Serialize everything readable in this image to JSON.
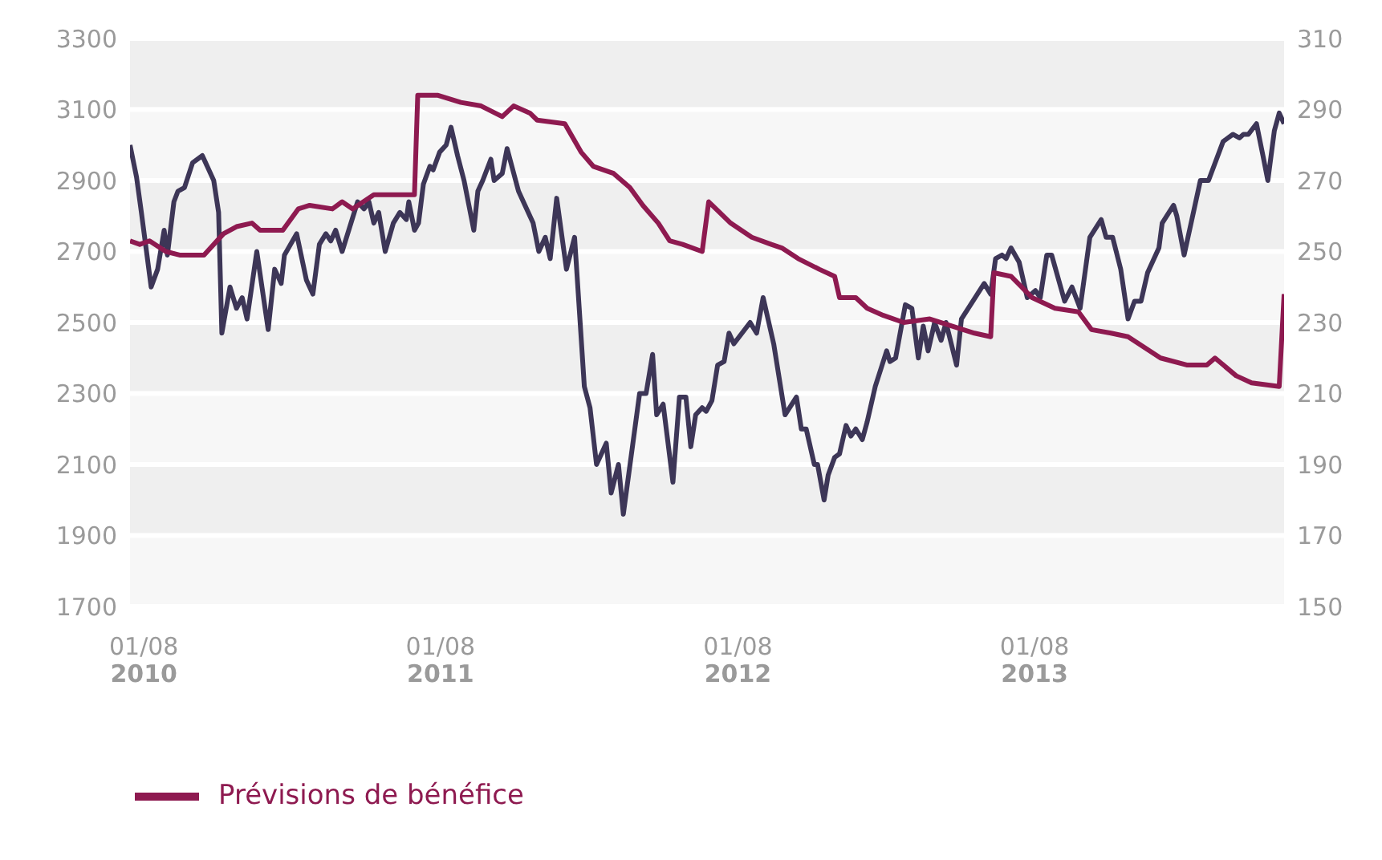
{
  "chart_data": {
    "type": "line",
    "xlim": [
      "2010-07-15",
      "2014-06-04"
    ],
    "xticks": [
      {
        "value": "2010-08-01",
        "label": "01/08\n2010"
      },
      {
        "value": "2011-08-01",
        "label": "01/08\n2011"
      },
      {
        "value": "2012-08-01",
        "label": "01/08\n2012"
      },
      {
        "value": "2013-08-01",
        "label": "01/08\n2013"
      }
    ],
    "ylim": [
      1700,
      3300
    ],
    "yticks": [
      1700,
      1900,
      2100,
      2300,
      2500,
      2700,
      2900,
      3100,
      3300
    ],
    "y2lim": [
      150,
      310
    ],
    "y2ticks": [
      150,
      170,
      190,
      210,
      230,
      250,
      270,
      290,
      310
    ],
    "grid": "y",
    "legend": "bottom left",
    "marker": "none",
    "line_style": "solid",
    "series": [
      {
        "color": "#3d3657",
        "axis": "y",
        "x": [
          "2010-07-15",
          "2010-07-23",
          "2010-07-29",
          "2010-08-10",
          "2010-08-18",
          "2010-08-26",
          "2010-08-30",
          "2010-09-07",
          "2010-09-12",
          "2010-09-20",
          "2010-09-30",
          "2010-10-12",
          "2010-10-26",
          "2010-11-01",
          "2010-11-05",
          "2010-11-15",
          "2010-11-23",
          "2010-11-30",
          "2010-12-06",
          "2010-12-18",
          "2011-01-01",
          "2011-01-09",
          "2011-01-17",
          "2011-01-21",
          "2011-02-05",
          "2011-02-17",
          "2011-02-25",
          "2011-03-05",
          "2011-03-13",
          "2011-03-19",
          "2011-03-25",
          "2011-04-02",
          "2011-04-21",
          "2011-04-29",
          "2011-05-05",
          "2011-05-11",
          "2011-05-17",
          "2011-05-25",
          "2011-06-04",
          "2011-06-12",
          "2011-06-20",
          "2011-06-23",
          "2011-06-30",
          "2011-07-05",
          "2011-07-11",
          "2011-07-19",
          "2011-07-23",
          "2011-07-31",
          "2011-08-08",
          "2011-08-14",
          "2011-08-22",
          "2011-08-30",
          "2011-09-11",
          "2011-09-16",
          "2011-09-22",
          "2011-10-02",
          "2011-10-06",
          "2011-10-16",
          "2011-10-22",
          "2011-11-05",
          "2011-11-23",
          "2011-11-30",
          "2011-12-08",
          "2011-12-14",
          "2011-12-22",
          "2012-01-03",
          "2012-01-13",
          "2012-01-25",
          "2012-02-01",
          "2012-02-09",
          "2012-02-21",
          "2012-02-27",
          "2012-03-07",
          "2012-03-13",
          "2012-04-02",
          "2012-04-10",
          "2012-04-18",
          "2012-04-23",
          "2012-05-01",
          "2012-05-13",
          "2012-05-21",
          "2012-05-29",
          "2012-06-04",
          "2012-06-10",
          "2012-06-18",
          "2012-06-23",
          "2012-06-30",
          "2012-07-07",
          "2012-07-15",
          "2012-07-21",
          "2012-07-27",
          "2012-08-06",
          "2012-08-16",
          "2012-08-24",
          "2012-09-01",
          "2012-09-14",
          "2012-09-28",
          "2012-10-12",
          "2012-10-18",
          "2012-10-24",
          "2012-11-03",
          "2012-11-07",
          "2012-11-15",
          "2012-11-20",
          "2012-11-28",
          "2012-12-04",
          "2012-12-12",
          "2012-12-18",
          "2012-12-24",
          "2013-01-01",
          "2013-01-07",
          "2013-01-17",
          "2013-01-31",
          "2013-02-04",
          "2013-02-11",
          "2013-02-23",
          "2013-03-03",
          "2013-03-11",
          "2013-03-17",
          "2013-03-23",
          "2013-03-31",
          "2013-04-08",
          "2013-04-14",
          "2013-04-27",
          "2013-05-03",
          "2013-05-31",
          "2013-06-08",
          "2013-06-14",
          "2013-06-22",
          "2013-06-27",
          "2013-07-03",
          "2013-07-13",
          "2013-07-23",
          "2013-08-02",
          "2013-08-08",
          "2013-08-16",
          "2013-08-22",
          "2013-09-07",
          "2013-09-16",
          "2013-09-26",
          "2013-10-08",
          "2013-10-22",
          "2013-10-28",
          "2013-11-05",
          "2013-11-15",
          "2013-11-24",
          "2013-12-02",
          "2013-12-10",
          "2013-12-18",
          "2014-01-01",
          "2014-01-05",
          "2014-01-19",
          "2014-01-23",
          "2014-02-01",
          "2014-02-21",
          "2014-03-03",
          "2014-03-21",
          "2014-03-27",
          "2014-04-02",
          "2014-04-10",
          "2014-04-15",
          "2014-04-21",
          "2014-05-01",
          "2014-05-09",
          "2014-05-15",
          "2014-05-23",
          "2014-05-29",
          "2014-06-04"
        ],
        "values": [
          3000,
          2910,
          2810,
          2600,
          2650,
          2760,
          2690,
          2840,
          2870,
          2880,
          2950,
          2970,
          2900,
          2810,
          2470,
          2600,
          2540,
          2570,
          2510,
          2700,
          2480,
          2650,
          2610,
          2690,
          2750,
          2620,
          2580,
          2720,
          2750,
          2730,
          2760,
          2700,
          2840,
          2820,
          2840,
          2780,
          2810,
          2700,
          2780,
          2810,
          2790,
          2840,
          2760,
          2780,
          2890,
          2940,
          2930,
          2980,
          3000,
          3050,
          2970,
          2900,
          2760,
          2870,
          2900,
          2960,
          2900,
          2920,
          2990,
          2870,
          2780,
          2700,
          2740,
          2680,
          2850,
          2650,
          2740,
          2320,
          2260,
          2100,
          2160,
          2020,
          2100,
          1960,
          2300,
          2300,
          2410,
          2240,
          2270,
          2050,
          2290,
          2290,
          2150,
          2240,
          2260,
          2250,
          2280,
          2380,
          2390,
          2470,
          2440,
          2470,
          2500,
          2470,
          2570,
          2440,
          2240,
          2290,
          2200,
          2200,
          2100,
          2100,
          2000,
          2070,
          2120,
          2130,
          2210,
          2180,
          2200,
          2170,
          2220,
          2320,
          2420,
          2390,
          2400,
          2550,
          2540,
          2400,
          2490,
          2420,
          2500,
          2450,
          2500,
          2380,
          2510,
          2610,
          2580,
          2680,
          2690,
          2680,
          2710,
          2670,
          2570,
          2590,
          2570,
          2690,
          2690,
          2560,
          2600,
          2540,
          2740,
          2790,
          2740,
          2740,
          2650,
          2510,
          2560,
          2560,
          2640,
          2710,
          2780,
          2830,
          2800,
          2690,
          2900,
          2900,
          3010,
          3020,
          3030,
          3020,
          3030,
          3030,
          3060,
          2970,
          2900,
          3040,
          3090,
          3060
        ]
      },
      {
        "name": "Prévisions de bénéfice",
        "color": "#8e1a50",
        "axis": "y2",
        "x": [
          "2010-07-15",
          "2010-07-27",
          "2010-08-08",
          "2010-08-28",
          "2010-09-14",
          "2010-10-14",
          "2010-11-07",
          "2010-11-23",
          "2010-12-12",
          "2010-12-22",
          "2011-01-19",
          "2011-02-07",
          "2011-02-21",
          "2011-03-21",
          "2011-04-02",
          "2011-04-15",
          "2011-05-11",
          "2011-06-30",
          "2011-07-04",
          "2011-07-29",
          "2011-08-26",
          "2011-09-20",
          "2011-10-16",
          "2011-10-30",
          "2011-11-19",
          "2011-11-28",
          "2012-01-01",
          "2012-01-21",
          "2012-02-05",
          "2012-03-01",
          "2012-03-21",
          "2012-04-06",
          "2012-04-25",
          "2012-05-09",
          "2012-05-25",
          "2012-06-18",
          "2012-06-26",
          "2012-07-23",
          "2012-08-18",
          "2012-09-11",
          "2012-09-24",
          "2012-10-14",
          "2012-11-09",
          "2012-11-28",
          "2012-12-04",
          "2012-12-24",
          "2013-01-07",
          "2013-01-27",
          "2013-02-21",
          "2013-03-25",
          "2013-05-19",
          "2013-06-08",
          "2013-06-12",
          "2013-07-03",
          "2013-07-29",
          "2013-08-26",
          "2013-09-24",
          "2013-10-10",
          "2013-11-03",
          "2013-11-24",
          "2014-01-03",
          "2014-02-05",
          "2014-03-01",
          "2014-03-11",
          "2014-04-06",
          "2014-04-25",
          "2014-05-29",
          "2014-06-04"
        ],
        "values": [
          253,
          252,
          253,
          250,
          249,
          249,
          255,
          257,
          258,
          256,
          256,
          262,
          263,
          262,
          264,
          262,
          266,
          266,
          294,
          294,
          292,
          291,
          288,
          291,
          289,
          287,
          286,
          278,
          274,
          272,
          268,
          263,
          258,
          253,
          252,
          250,
          264,
          258,
          254,
          252,
          251,
          248,
          245,
          243,
          237,
          237,
          234,
          232,
          230,
          231,
          227,
          226,
          244,
          243,
          237,
          234,
          233,
          228,
          227,
          226,
          220,
          218,
          218,
          220,
          215,
          213,
          212,
          238
        ]
      }
    ]
  }
}
